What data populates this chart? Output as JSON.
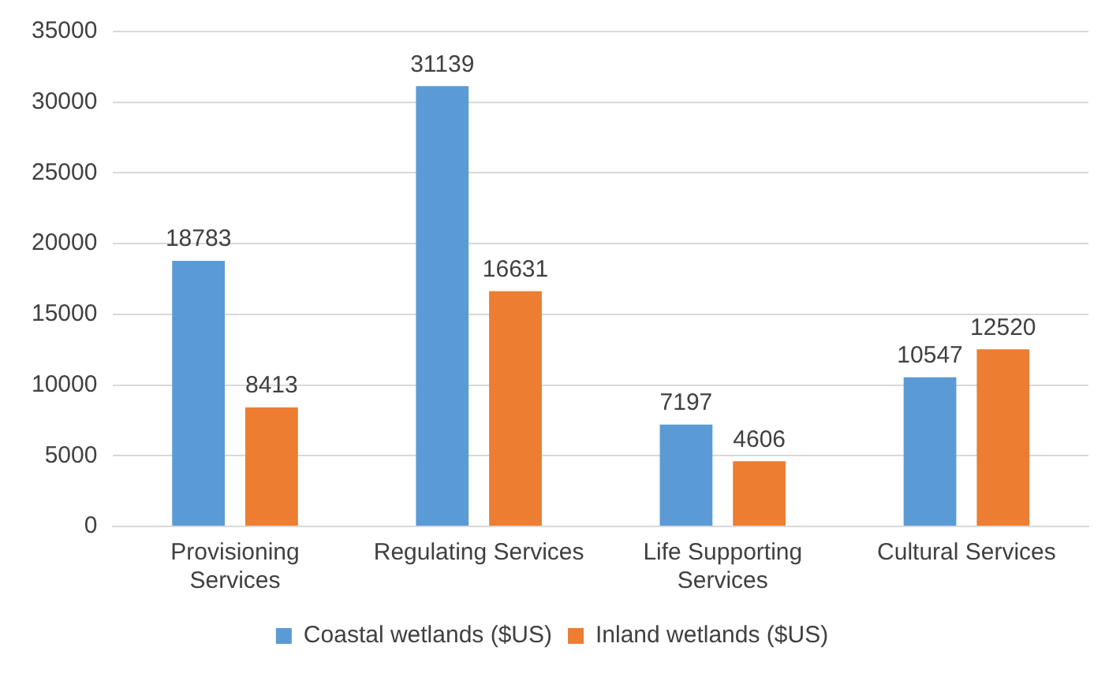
{
  "chart_data": {
    "type": "bar",
    "categories": [
      "Provisioning Services",
      "Regulating Services",
      "Life Supporting Services",
      "Cultural Services"
    ],
    "series": [
      {
        "name": "Coastal wetlands ($US)",
        "color": "#5b9bd5",
        "values": [
          18783,
          31139,
          7197,
          10547
        ]
      },
      {
        "name": "Inland wetlands ($US)",
        "color": "#ed7d31",
        "values": [
          8413,
          16631,
          4606,
          12520
        ]
      }
    ],
    "ylim": [
      0,
      35000
    ],
    "yticks": [
      0,
      5000,
      10000,
      15000,
      20000,
      25000,
      30000,
      35000
    ],
    "grid": "y",
    "legend": "bottom",
    "data_labels": true
  }
}
